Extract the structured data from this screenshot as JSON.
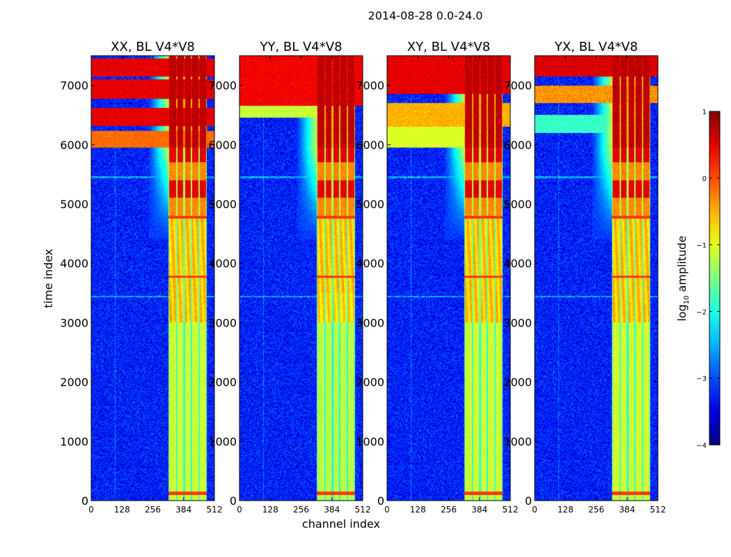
{
  "figure_title": "2014-08-28 0.0-24.0",
  "chart_data": {
    "type": "heatmap",
    "panels": [
      {
        "title": "XX, BL V4*V8",
        "variant": "xx"
      },
      {
        "title": "YY, BL V4*V8",
        "variant": "yy"
      },
      {
        "title": "XY, BL V4*V8",
        "variant": "xy"
      },
      {
        "title": "YX, BL V4*V8",
        "variant": "yx"
      }
    ],
    "xlabel": "channel index",
    "ylabel": "time index",
    "xlim": [
      0,
      512
    ],
    "ylim": [
      0,
      7500
    ],
    "x_ticks": [
      0,
      128,
      256,
      384,
      512
    ],
    "y_ticks": [
      0,
      1000,
      2000,
      3000,
      4000,
      5000,
      6000,
      7000
    ],
    "colorbar": {
      "label": "log10 amplitude",
      "label_text": "log",
      "label_sub": "10",
      "label_suffix": " amplitude",
      "range": [
        -4,
        1
      ],
      "ticks": [
        1,
        0,
        -1,
        -2,
        -3,
        -4
      ],
      "tick_labels": [
        "1",
        "0",
        "−1",
        "−2",
        "−3",
        "−4"
      ],
      "colormap": "jet"
    },
    "features": {
      "rfi_channel_band": [
        322,
        480
      ],
      "bright_time_ranges": [
        [
          6000,
          7500
        ]
      ],
      "background_log_amplitude": -3.2
    }
  }
}
